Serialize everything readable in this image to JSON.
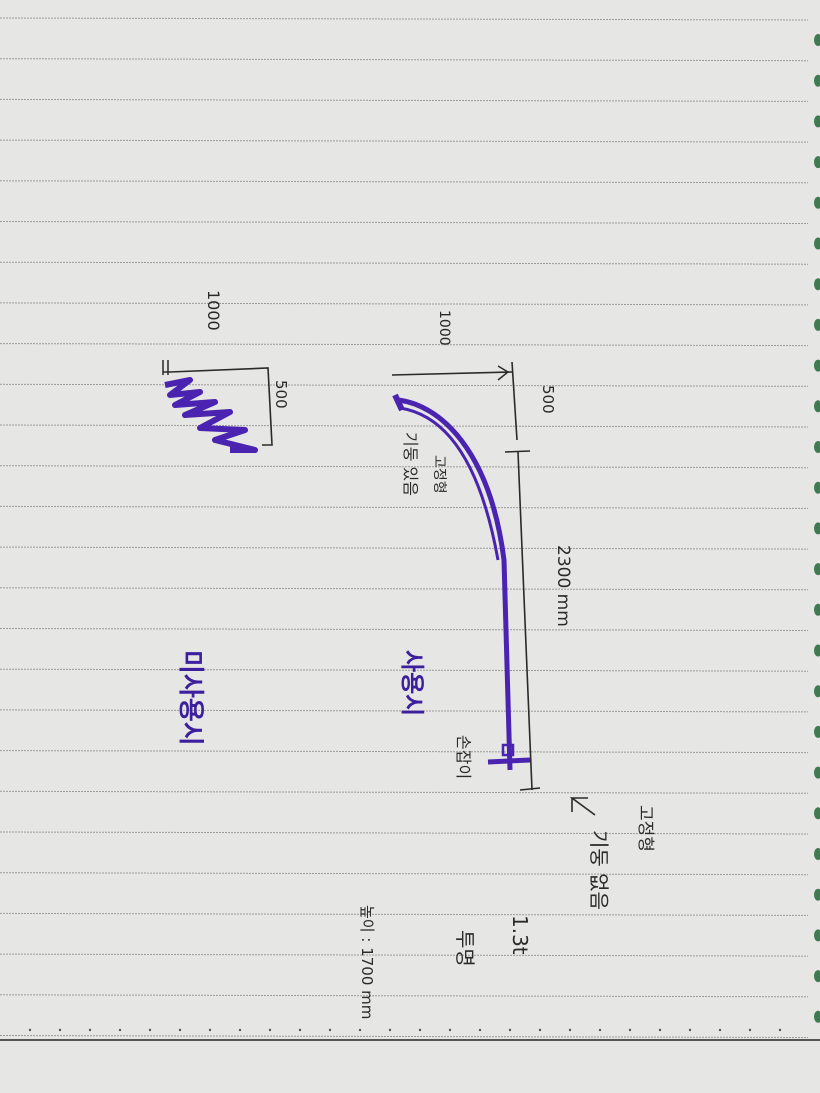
{
  "colors": {
    "paper": "#e4e4e2",
    "rule": "#9a9a9a",
    "ink_purple": "#4a23b0",
    "pencil": "#2a2a2a",
    "ring_holes": "#3f7a52"
  },
  "unused_state": {
    "label": "미사용시",
    "height": "1000",
    "width": "500"
  },
  "used_state": {
    "label": "사용시",
    "height": "1000",
    "offset": "500",
    "length": "2300 mm",
    "fixed_post_note_1": "고정형",
    "fixed_post_note_2": "기둥 있음",
    "handle_label": "손잡이"
  },
  "notes": {
    "no_post_1": "고정형",
    "no_post_2": "기둥 없음",
    "material_1": "1.3t",
    "material_2": "투명",
    "height": "높이 : 1700 mm"
  }
}
